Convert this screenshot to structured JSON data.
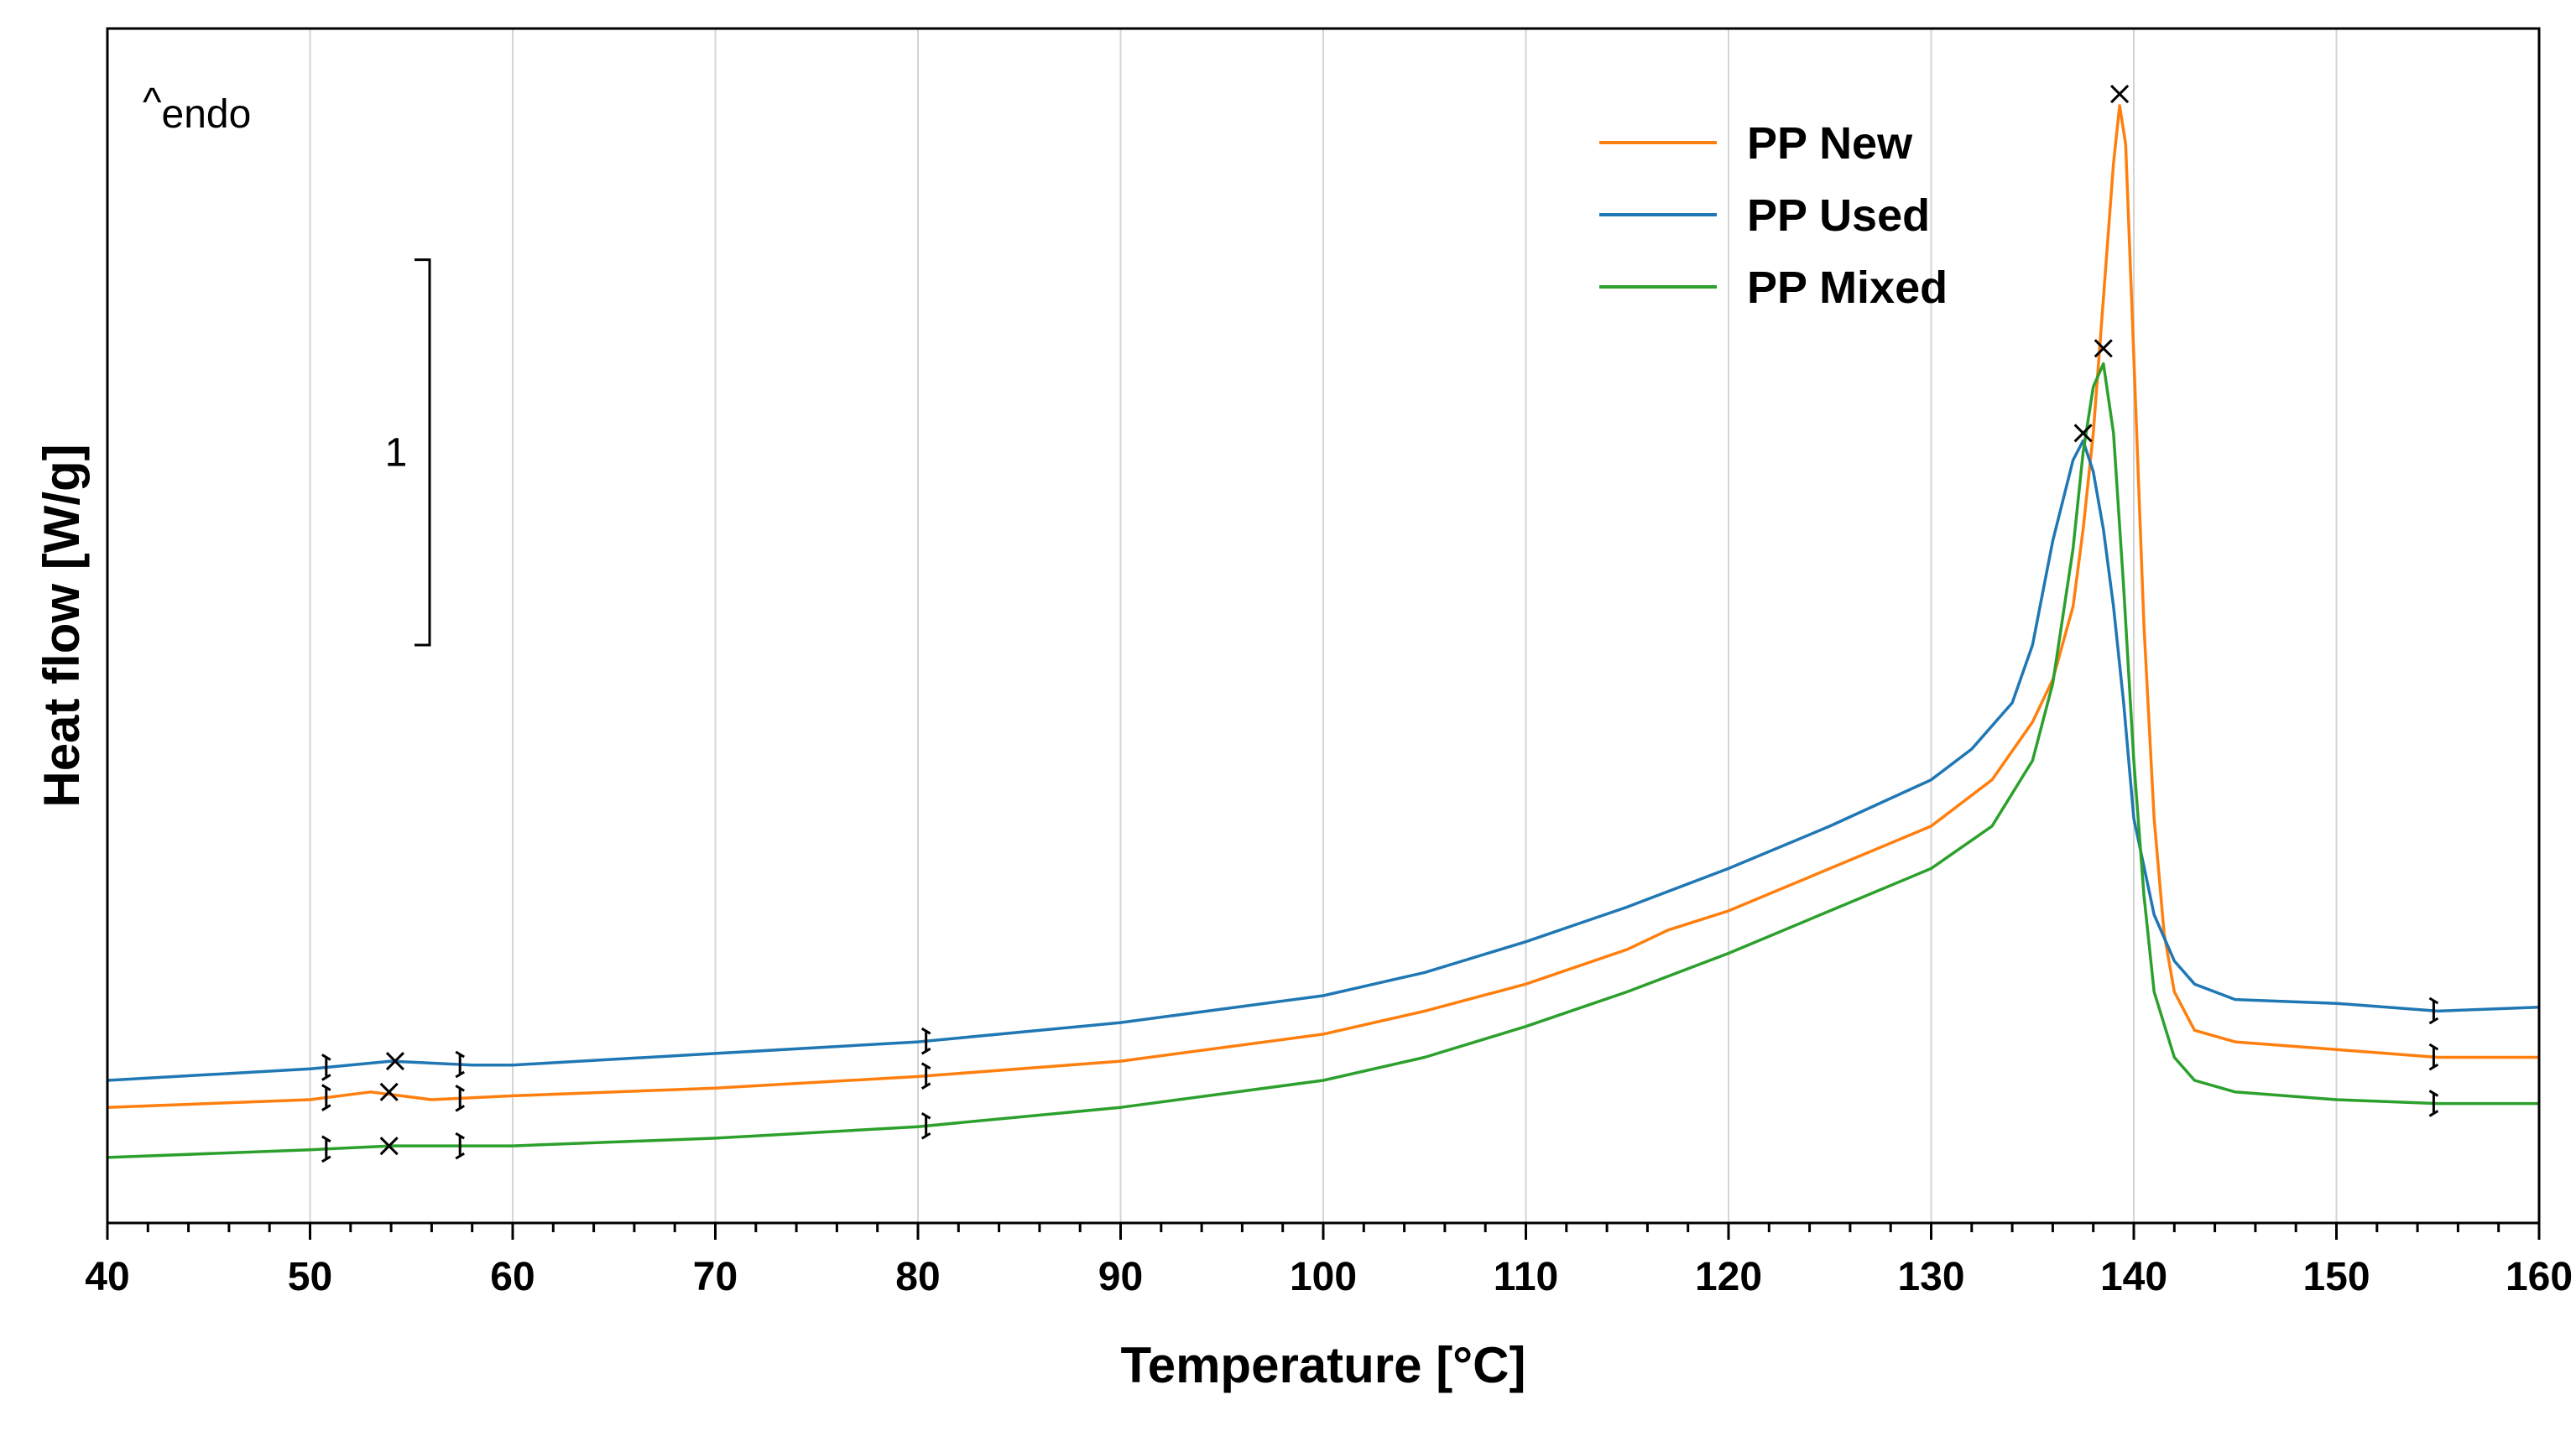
{
  "chart_data": {
    "type": "line",
    "title": "",
    "xlabel": "Temperature [°C]",
    "ylabel": "Heat flow [W/g]",
    "xlim": [
      40,
      160
    ],
    "ylim": [
      -1.05,
      2.05
    ],
    "xticks": [
      40,
      50,
      60,
      70,
      80,
      90,
      100,
      110,
      120,
      130,
      140,
      150,
      160
    ],
    "xtick_labels": [
      "40",
      "50",
      "60",
      "70",
      "80",
      "90",
      "100",
      "110",
      "120",
      "130",
      "140",
      "150",
      "160"
    ],
    "grid": true,
    "legend_position": "top-right",
    "endo_marker": {
      "caret": "^",
      "text": "endo"
    },
    "scale_bar": {
      "label": "1",
      "y_from": 0.45,
      "y_to": 1.45
    },
    "series": [
      {
        "name": "PP New",
        "color": "#ff7f0e",
        "x": [
          40,
          50,
          53,
          56,
          60,
          70,
          80,
          90,
          100,
          105,
          110,
          115,
          117,
          120,
          125,
          130,
          133,
          135,
          136,
          137,
          137.5,
          138,
          138.5,
          139,
          139.3,
          139.6,
          140,
          140.5,
          141,
          141.5,
          142,
          143,
          145,
          150,
          155,
          160
        ],
        "y": [
          -0.75,
          -0.73,
          -0.71,
          -0.73,
          -0.72,
          -0.7,
          -0.67,
          -0.63,
          -0.56,
          -0.5,
          -0.43,
          -0.34,
          -0.29,
          -0.24,
          -0.13,
          -0.02,
          0.1,
          0.25,
          0.36,
          0.55,
          0.75,
          1.0,
          1.35,
          1.7,
          1.85,
          1.75,
          1.2,
          0.5,
          0.0,
          -0.3,
          -0.45,
          -0.55,
          -0.58,
          -0.6,
          -0.62,
          -0.62
        ]
      },
      {
        "name": "PP Used",
        "color": "#1f77b4",
        "x": [
          40,
          50,
          54,
          58,
          60,
          70,
          80,
          90,
          100,
          105,
          110,
          115,
          120,
          125,
          130,
          132,
          134,
          135,
          136,
          137,
          137.5,
          138,
          138.5,
          139,
          139.5,
          140,
          141,
          142,
          143,
          145,
          150,
          155,
          160
        ],
        "y": [
          -0.68,
          -0.65,
          -0.63,
          -0.64,
          -0.64,
          -0.61,
          -0.58,
          -0.53,
          -0.46,
          -0.4,
          -0.32,
          -0.23,
          -0.13,
          -0.02,
          0.1,
          0.18,
          0.3,
          0.45,
          0.72,
          0.93,
          0.98,
          0.9,
          0.75,
          0.55,
          0.3,
          0.0,
          -0.25,
          -0.37,
          -0.43,
          -0.47,
          -0.48,
          -0.5,
          -0.49
        ]
      },
      {
        "name": "PP Mixed",
        "color": "#2ca02c",
        "x": [
          40,
          50,
          54,
          58,
          60,
          70,
          80,
          90,
          100,
          105,
          110,
          115,
          120,
          125,
          130,
          133,
          135,
          136,
          137,
          137.5,
          138,
          138.5,
          139,
          139.5,
          140,
          140.5,
          141,
          142,
          143,
          145,
          150,
          155,
          160
        ],
        "y": [
          -0.88,
          -0.86,
          -0.85,
          -0.85,
          -0.85,
          -0.83,
          -0.8,
          -0.75,
          -0.68,
          -0.62,
          -0.54,
          -0.45,
          -0.35,
          -0.24,
          -0.13,
          -0.02,
          0.15,
          0.35,
          0.7,
          0.95,
          1.12,
          1.18,
          1.0,
          0.6,
          0.15,
          -0.2,
          -0.45,
          -0.62,
          -0.68,
          -0.71,
          -0.73,
          -0.74,
          -0.74
        ]
      }
    ],
    "peak_markers": [
      {
        "series": "PP New",
        "x": 139.3,
        "y": 1.88
      },
      {
        "series": "PP Mixed",
        "x": 138.5,
        "y": 1.22
      },
      {
        "series": "PP Used",
        "x": 137.5,
        "y": 1.0
      },
      {
        "series": "PP Used",
        "x": 54.2,
        "y": -0.63
      },
      {
        "series": "PP New",
        "x": 53.9,
        "y": -0.71
      },
      {
        "series": "PP Mixed",
        "x": 53.9,
        "y": -0.85
      }
    ],
    "limit_markers": [
      {
        "series": "PP Used",
        "x": [
          50.8,
          57.4,
          80.4,
          154.8
        ]
      },
      {
        "series": "PP New",
        "x": [
          50.8,
          57.4,
          80.4,
          154.8
        ]
      },
      {
        "series": "PP Mixed",
        "x": [
          50.8,
          57.4,
          80.4,
          154.8
        ]
      }
    ]
  }
}
